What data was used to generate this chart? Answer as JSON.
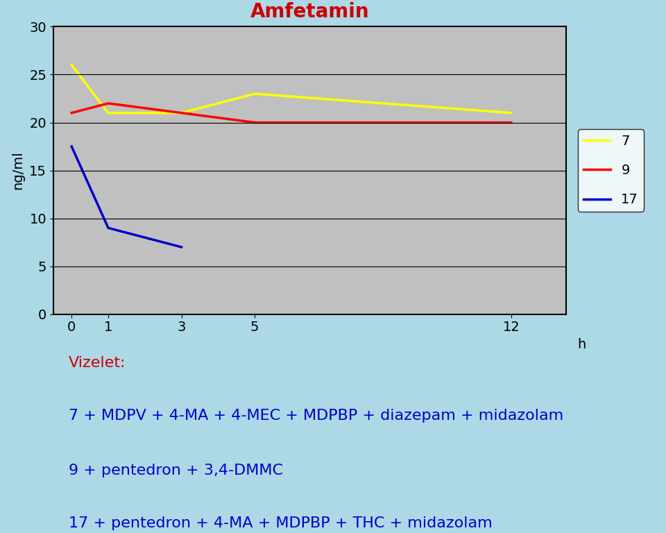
{
  "title": "Amfetamin",
  "title_color": "#cc0000",
  "ylabel": "ng/ml",
  "xlabel_unit": "h",
  "x_ticks": [
    0,
    1,
    3,
    5,
    12
  ],
  "ylim": [
    0,
    30
  ],
  "yticks": [
    0,
    5,
    10,
    15,
    20,
    25,
    30
  ],
  "background_color": "#add8e6",
  "plot_bg_color": "#c0c0c0",
  "series": [
    {
      "label": "7",
      "color": "#ffff00",
      "x": [
        0,
        1,
        3,
        5,
        12
      ],
      "y": [
        26,
        21,
        21,
        23,
        21
      ]
    },
    {
      "label": "9",
      "color": "#ff0000",
      "x": [
        0,
        1,
        3,
        5,
        12
      ],
      "y": [
        21,
        22,
        21,
        20,
        20
      ]
    },
    {
      "label": "17",
      "color": "#0000cc",
      "x": [
        0,
        1,
        3,
        5,
        12
      ],
      "y": [
        17.5,
        9,
        7,
        null,
        null
      ]
    }
  ],
  "annotation_lines": [
    "Vizelet:",
    "7 + MDPV + 4-MA + 4-MEC + MDPBP + diazepam + midazolam",
    "9 + pentedron + 3,4-DMMC",
    "17 + pentedron + 4-MA + MDPBP + THC + midazolam"
  ],
  "annotation_color": "#0000cc",
  "vizelet_color": "#cc0000",
  "annotation_fontsize": 16,
  "legend_entries": [
    "7",
    "9",
    "17"
  ],
  "legend_colors": [
    "#ffff00",
    "#ff0000",
    "#0000cc"
  ]
}
